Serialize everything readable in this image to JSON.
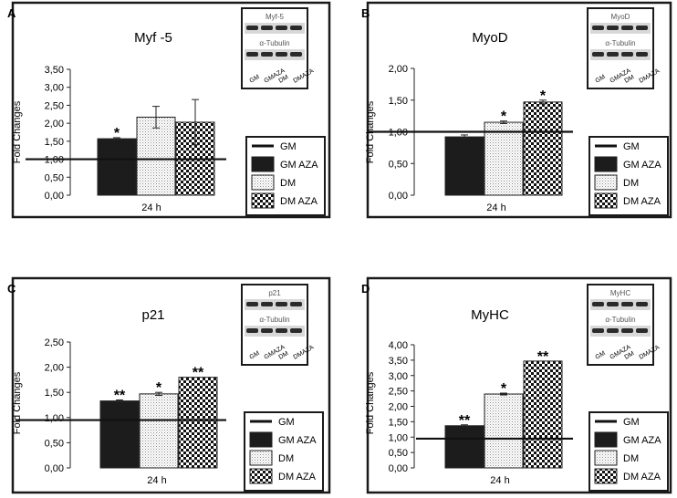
{
  "chart_data": [
    {
      "type": "bar",
      "panel": "A",
      "title": "Myf -5",
      "xlabel": "24 h",
      "ylabel": "Fold Changes",
      "ylim": [
        0,
        3.5
      ],
      "yticks": [
        "0,00",
        "0,50",
        "1,00",
        "1,50",
        "2,00",
        "2,50",
        "3,00",
        "3,50"
      ],
      "series": [
        {
          "name": "GM AZA",
          "value": 1.57,
          "error": 0.03,
          "significance": "*",
          "pattern": "solid"
        },
        {
          "name": "DM",
          "value": 2.17,
          "error": 0.3,
          "significance": "",
          "pattern": "dots"
        },
        {
          "name": "DM AZA",
          "value": 2.03,
          "error": 0.63,
          "significance": "",
          "pattern": "check"
        }
      ],
      "baseline": {
        "name": "GM",
        "value": 1.0
      },
      "legend": [
        "GM",
        "GM AZA",
        "DM",
        "DM AZA"
      ],
      "blot": {
        "label_top": "Myf-5",
        "label_bottom": "α-Tubulin",
        "lanes": [
          "GM",
          "GMAZA",
          "DM",
          "DMAZA"
        ]
      }
    },
    {
      "type": "bar",
      "panel": "B",
      "title": "MyoD",
      "xlabel": "24 h",
      "ylabel": "Fold Changes",
      "ylim": [
        0,
        2.0
      ],
      "yticks": [
        "0,00",
        "0,50",
        "1,00",
        "1,50",
        "2,00"
      ],
      "series": [
        {
          "name": "GM AZA",
          "value": 0.92,
          "error": 0.03,
          "significance": "",
          "pattern": "solid"
        },
        {
          "name": "DM",
          "value": 1.15,
          "error": 0.02,
          "significance": "*",
          "pattern": "dots"
        },
        {
          "name": "DM AZA",
          "value": 1.47,
          "error": 0.03,
          "significance": "*",
          "pattern": "check"
        }
      ],
      "baseline": {
        "name": "GM",
        "value": 1.0
      },
      "legend": [
        "GM",
        "GM AZA",
        "DM",
        "DM AZA"
      ],
      "blot": {
        "label_top": "MyoD",
        "label_bottom": "α-Tubulin",
        "lanes": [
          "GM",
          "GMAZA",
          "DM",
          "DMAZA"
        ]
      }
    },
    {
      "type": "bar",
      "panel": "C",
      "title": "p21",
      "xlabel": "24 h",
      "ylabel": "Fold Changes",
      "ylim": [
        0,
        2.5
      ],
      "yticks": [
        "0,00",
        "0,50",
        "1,00",
        "1,50",
        "2,00",
        "2,50"
      ],
      "series": [
        {
          "name": "GM AZA",
          "value": 1.33,
          "error": 0.02,
          "significance": "**",
          "pattern": "solid"
        },
        {
          "name": "DM",
          "value": 1.47,
          "error": 0.03,
          "significance": "*",
          "pattern": "dots"
        },
        {
          "name": "DM AZA",
          "value": 1.8,
          "error": 0.0,
          "significance": "**",
          "pattern": "check"
        }
      ],
      "baseline": {
        "name": "GM",
        "value": 0.95
      },
      "legend": [
        "GM",
        "GM AZA",
        "DM",
        "DM AZA"
      ],
      "blot": {
        "label_top": "p21",
        "label_bottom": "α-Tubulin",
        "lanes": [
          "GM",
          "GMAZA",
          "DM",
          "DMAZA"
        ]
      }
    },
    {
      "type": "bar",
      "panel": "D",
      "title": "MyHC",
      "xlabel": "24 h",
      "ylabel": "Fold Changes",
      "ylim": [
        0,
        4.0
      ],
      "yticks": [
        "0,00",
        "0,50",
        "1,00",
        "1,50",
        "2,00",
        "2,50",
        "3,00",
        "3,50",
        "4,00"
      ],
      "series": [
        {
          "name": "GM AZA",
          "value": 1.37,
          "error": 0.03,
          "significance": "**",
          "pattern": "solid"
        },
        {
          "name": "DM",
          "value": 2.4,
          "error": 0.03,
          "significance": "*",
          "pattern": "dots"
        },
        {
          "name": "DM AZA",
          "value": 3.47,
          "error": 0.0,
          "significance": "**",
          "pattern": "check"
        }
      ],
      "baseline": {
        "name": "GM",
        "value": 0.95
      },
      "legend": [
        "GM",
        "GM AZA",
        "DM",
        "DM AZA"
      ],
      "blot": {
        "label_top": "MyHC",
        "label_bottom": "α-Tubulin",
        "lanes": [
          "GM",
          "GMAZA",
          "DM",
          "DMAZA"
        ]
      }
    }
  ]
}
